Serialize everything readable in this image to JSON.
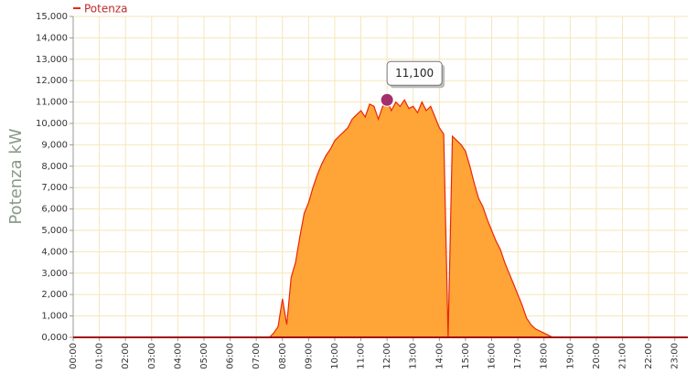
{
  "chart_data": {
    "type": "area",
    "legend": "top-left",
    "y_label": "Potenza kW",
    "grid": true,
    "x": [
      "00:00",
      "07:30",
      "07:40",
      "07:50",
      "08:00",
      "08:10",
      "08:20",
      "08:30",
      "08:40",
      "08:50",
      "09:00",
      "09:10",
      "09:20",
      "09:30",
      "09:40",
      "09:50",
      "10:00",
      "10:10",
      "10:20",
      "10:30",
      "10:40",
      "10:50",
      "11:00",
      "11:10",
      "11:20",
      "11:30",
      "11:40",
      "11:50",
      "12:00",
      "12:10",
      "12:20",
      "12:30",
      "12:40",
      "12:50",
      "13:00",
      "13:10",
      "13:20",
      "13:30",
      "13:40",
      "13:50",
      "14:00",
      "14:10",
      "14:20",
      "14:30",
      "14:40",
      "14:50",
      "15:00",
      "15:10",
      "15:20",
      "15:30",
      "15:40",
      "15:50",
      "16:00",
      "16:10",
      "16:20",
      "16:30",
      "16:40",
      "16:50",
      "17:00",
      "17:10",
      "17:20",
      "17:30",
      "17:40",
      "17:50",
      "18:00",
      "18:10",
      "18:20",
      "23:30"
    ],
    "series": [
      {
        "name": "Potenza",
        "color": "#e8280a",
        "fill": "#ffa436",
        "values": [
          0,
          0,
          200,
          500,
          1800,
          600,
          2800,
          3500,
          4700,
          5800,
          6300,
          7000,
          7600,
          8100,
          8500,
          8800,
          9200,
          9400,
          9600,
          9800,
          10200,
          10400,
          10600,
          10300,
          10900,
          10800,
          10200,
          10800,
          11100,
          10600,
          11000,
          10800,
          11100,
          10700,
          10800,
          10500,
          11000,
          10600,
          10800,
          10300,
          9800,
          9500,
          0,
          9400,
          9200,
          9000,
          8700,
          8000,
          7200,
          6500,
          6100,
          5500,
          5000,
          4500,
          4100,
          3500,
          3000,
          2500,
          2000,
          1500,
          900,
          600,
          400,
          300,
          200,
          100,
          0,
          0
        ]
      }
    ],
    "tooltip": {
      "value": 11100,
      "label": "11,100"
    },
    "xlim": [
      "00:00",
      "23:30"
    ],
    "xticks": [
      "00:00",
      "01:00",
      "02:00",
      "03:00",
      "04:00",
      "05:00",
      "06:00",
      "07:00",
      "08:00",
      "09:00",
      "10:00",
      "11:00",
      "12:00",
      "13:00",
      "14:00",
      "15:00",
      "16:00",
      "17:00",
      "18:00",
      "19:00",
      "20:00",
      "21:00",
      "22:00",
      "23:00"
    ],
    "ylim": [
      0,
      15000
    ],
    "yticks": [
      {
        "value": 0,
        "label": "0,000"
      },
      {
        "value": 1000,
        "label": "1,000"
      },
      {
        "value": 2000,
        "label": "2,000"
      },
      {
        "value": 3000,
        "label": "3,000"
      },
      {
        "value": 4000,
        "label": "4,000"
      },
      {
        "value": 5000,
        "label": "5,000"
      },
      {
        "value": 6000,
        "label": "6,000"
      },
      {
        "value": 7000,
        "label": "7,000"
      },
      {
        "value": 8000,
        "label": "8,000"
      },
      {
        "value": 9000,
        "label": "9,000"
      },
      {
        "value": 10000,
        "label": "10,000"
      },
      {
        "value": 11000,
        "label": "11,000"
      },
      {
        "value": 12000,
        "label": "12,000"
      },
      {
        "value": 13000,
        "label": "13,000"
      },
      {
        "value": 14000,
        "label": "14,000"
      },
      {
        "value": 15000,
        "label": "15,000"
      }
    ]
  }
}
